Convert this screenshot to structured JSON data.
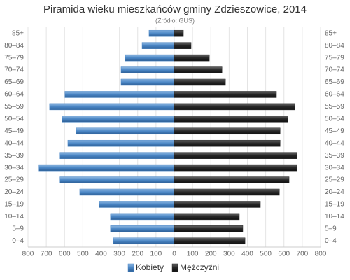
{
  "chart_data": {
    "type": "pyramid",
    "title": "Piramida wieku mieszkańców gminy Zdzieszowice, 2014",
    "subtitle": "(Źródło: GUS)",
    "categories": [
      "85+",
      "80–84",
      "75–79",
      "70–74",
      "65–69",
      "60–64",
      "55–59",
      "50–54",
      "45–49",
      "40–44",
      "35–39",
      "30–34",
      "25–29",
      "20–24",
      "15–19",
      "10–14",
      "5–9",
      "0–4"
    ],
    "series": [
      {
        "name": "Kobiety",
        "color": "#4a86c5",
        "values": [
          -138,
          -176,
          -268,
          -291,
          -291,
          -598,
          -682,
          -613,
          -536,
          -582,
          -625,
          -740,
          -625,
          -517,
          -410,
          -349,
          -349,
          -333
        ]
      },
      {
        "name": "Mężczyźni",
        "color": "#262626",
        "values": [
          50,
          92,
          192,
          261,
          280,
          559,
          659,
          621,
          579,
          579,
          670,
          670,
          628,
          575,
          471,
          356,
          375,
          387
        ]
      }
    ],
    "xlim": [
      -800,
      800
    ],
    "xticks": [
      {
        "value": -800,
        "label": "800"
      },
      {
        "value": -700,
        "label": "700"
      },
      {
        "value": -600,
        "label": "600"
      },
      {
        "value": -500,
        "label": "500"
      },
      {
        "value": -400,
        "label": "400"
      },
      {
        "value": -300,
        "label": "300"
      },
      {
        "value": -200,
        "label": "200"
      },
      {
        "value": -100,
        "label": "100"
      },
      0,
      100,
      200,
      300,
      400,
      500,
      600,
      700,
      800
    ],
    "grid": true
  }
}
